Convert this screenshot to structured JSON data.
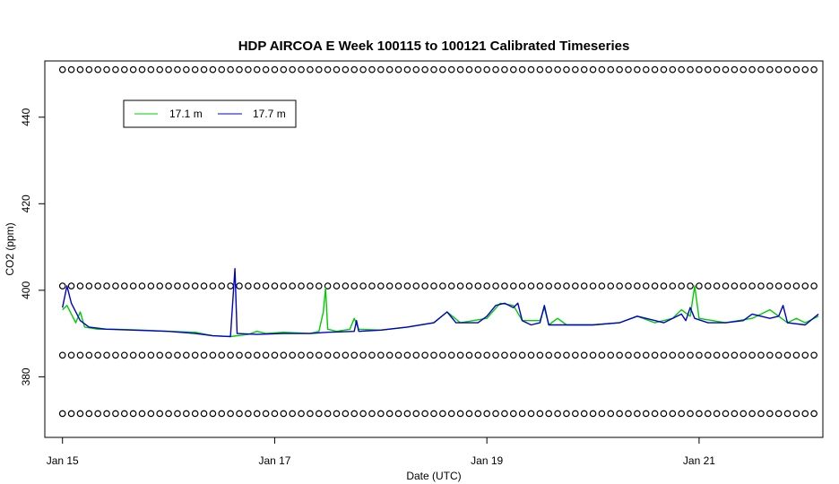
{
  "chart_data": {
    "type": "line",
    "title": "HDP AIRCOA E  Week 100115 to 100121  Calibrated Timeseries",
    "xlabel": "Date (UTC)",
    "ylabel": "CO2 (ppm)",
    "xlim": [
      "2010-01-14T20:00",
      "2010-01-22T04:00"
    ],
    "ylim": [
      366,
      453
    ],
    "x_ticks": [
      {
        "x": "2010-01-15T00:00",
        "label": "Jan 15"
      },
      {
        "x": "2010-01-17T00:00",
        "label": "Jan 17"
      },
      {
        "x": "2010-01-19T00:00",
        "label": "Jan 19"
      },
      {
        "x": "2010-01-21T00:00",
        "label": "Jan 21"
      }
    ],
    "y_ticks": [
      {
        "y": 380,
        "label": "380"
      },
      {
        "y": 400,
        "label": "400"
      },
      {
        "y": 420,
        "label": "420"
      },
      {
        "y": 440,
        "label": "440"
      }
    ],
    "grid": false,
    "legend_position": "top-left",
    "series": [
      {
        "name": "17.1 m",
        "color": "#00cc00",
        "points": [
          [
            "2010-01-15T00:00",
            395.5
          ],
          [
            "2010-01-15T01:00",
            396.5
          ],
          [
            "2010-01-15T03:00",
            392.5
          ],
          [
            "2010-01-15T04:00",
            395.0
          ],
          [
            "2010-01-15T05:00",
            391.5
          ],
          [
            "2010-01-15T08:00",
            391.0
          ],
          [
            "2010-01-15T12:00",
            391.0
          ],
          [
            "2010-01-15T18:00",
            390.8
          ],
          [
            "2010-01-16T00:00",
            390.5
          ],
          [
            "2010-01-16T06:00",
            390.3
          ],
          [
            "2010-01-16T10:00",
            389.5
          ],
          [
            "2010-01-16T14:00",
            389.3
          ],
          [
            "2010-01-16T18:00",
            389.8
          ],
          [
            "2010-01-16T20:00",
            390.5
          ],
          [
            "2010-01-16T22:00",
            390.0
          ],
          [
            "2010-01-17T02:00",
            390.3
          ],
          [
            "2010-01-17T08:00",
            390.0
          ],
          [
            "2010-01-17T10:00",
            390.5
          ],
          [
            "2010-01-17T11:00",
            395.0
          ],
          [
            "2010-01-17T11:30",
            400.5
          ],
          [
            "2010-01-17T12:00",
            391.0
          ],
          [
            "2010-01-17T14:00",
            390.5
          ],
          [
            "2010-01-17T17:00",
            391.0
          ],
          [
            "2010-01-17T18:00",
            393.5
          ],
          [
            "2010-01-17T19:00",
            391.0
          ],
          [
            "2010-01-18T00:00",
            390.8
          ],
          [
            "2010-01-18T06:00",
            391.5
          ],
          [
            "2010-01-18T12:00",
            392.5
          ],
          [
            "2010-01-18T15:00",
            395.0
          ],
          [
            "2010-01-18T18:00",
            392.5
          ],
          [
            "2010-01-19T00:00",
            393.5
          ],
          [
            "2010-01-19T03:00",
            397.0
          ],
          [
            "2010-01-19T06:00",
            396.5
          ],
          [
            "2010-01-19T08:00",
            393.0
          ],
          [
            "2010-01-19T12:00",
            393.0
          ],
          [
            "2010-01-19T13:00",
            396.0
          ],
          [
            "2010-01-19T14:00",
            392.0
          ],
          [
            "2010-01-19T16:00",
            393.5
          ],
          [
            "2010-01-19T18:00",
            392.0
          ],
          [
            "2010-01-20T00:00",
            392.0
          ],
          [
            "2010-01-20T06:00",
            392.5
          ],
          [
            "2010-01-20T10:00",
            394.0
          ],
          [
            "2010-01-20T14:00",
            392.5
          ],
          [
            "2010-01-20T18:00",
            393.5
          ],
          [
            "2010-01-20T20:00",
            395.5
          ],
          [
            "2010-01-20T22:00",
            394.0
          ],
          [
            "2010-01-20T23:00",
            401.0
          ],
          [
            "2010-01-21T00:00",
            393.5
          ],
          [
            "2010-01-21T06:00",
            392.5
          ],
          [
            "2010-01-21T12:00",
            393.5
          ],
          [
            "2010-01-21T16:00",
            395.5
          ],
          [
            "2010-01-21T18:00",
            394.0
          ],
          [
            "2010-01-21T20:00",
            392.5
          ],
          [
            "2010-01-21T22:00",
            393.5
          ],
          [
            "2010-01-22T00:00",
            392.5
          ],
          [
            "2010-01-22T03:00",
            394.0
          ]
        ]
      },
      {
        "name": "17.7 m",
        "color": "#0000cc",
        "points": [
          [
            "2010-01-15T00:00",
            396.0
          ],
          [
            "2010-01-15T01:00",
            401.0
          ],
          [
            "2010-01-15T02:00",
            397.0
          ],
          [
            "2010-01-15T04:00",
            393.0
          ],
          [
            "2010-01-15T06:00",
            391.5
          ],
          [
            "2010-01-15T10:00",
            391.0
          ],
          [
            "2010-01-15T16:00",
            390.8
          ],
          [
            "2010-01-16T00:00",
            390.5
          ],
          [
            "2010-01-16T06:00",
            390.0
          ],
          [
            "2010-01-16T10:00",
            389.5
          ],
          [
            "2010-01-16T14:00",
            389.3
          ],
          [
            "2010-01-16T15:00",
            405.0
          ],
          [
            "2010-01-16T15:30",
            390.0
          ],
          [
            "2010-01-16T20:00",
            389.8
          ],
          [
            "2010-01-17T02:00",
            390.0
          ],
          [
            "2010-01-17T08:00",
            390.0
          ],
          [
            "2010-01-17T12:00",
            390.3
          ],
          [
            "2010-01-17T18:00",
            390.5
          ],
          [
            "2010-01-17T18:30",
            393.0
          ],
          [
            "2010-01-17T19:00",
            390.5
          ],
          [
            "2010-01-18T00:00",
            390.8
          ],
          [
            "2010-01-18T06:00",
            391.5
          ],
          [
            "2010-01-18T12:00",
            392.5
          ],
          [
            "2010-01-18T15:00",
            395.0
          ],
          [
            "2010-01-18T17:00",
            392.5
          ],
          [
            "2010-01-18T22:00",
            392.5
          ],
          [
            "2010-01-19T00:00",
            394.0
          ],
          [
            "2010-01-19T02:00",
            396.5
          ],
          [
            "2010-01-19T04:00",
            397.0
          ],
          [
            "2010-01-19T06:00",
            396.0
          ],
          [
            "2010-01-19T07:00",
            397.0
          ],
          [
            "2010-01-19T08:00",
            393.0
          ],
          [
            "2010-01-19T10:00",
            392.0
          ],
          [
            "2010-01-19T12:00",
            392.5
          ],
          [
            "2010-01-19T13:00",
            396.5
          ],
          [
            "2010-01-19T14:00",
            392.0
          ],
          [
            "2010-01-19T18:00",
            392.0
          ],
          [
            "2010-01-20T00:00",
            392.0
          ],
          [
            "2010-01-20T06:00",
            392.5
          ],
          [
            "2010-01-20T10:00",
            394.0
          ],
          [
            "2010-01-20T12:00",
            393.5
          ],
          [
            "2010-01-20T16:00",
            392.5
          ],
          [
            "2010-01-20T20:00",
            394.5
          ],
          [
            "2010-01-20T21:00",
            393.0
          ],
          [
            "2010-01-20T22:00",
            396.0
          ],
          [
            "2010-01-20T23:00",
            393.5
          ],
          [
            "2010-01-21T02:00",
            392.5
          ],
          [
            "2010-01-21T06:00",
            392.5
          ],
          [
            "2010-01-21T10:00",
            393.0
          ],
          [
            "2010-01-21T12:00",
            394.5
          ],
          [
            "2010-01-21T16:00",
            393.5
          ],
          [
            "2010-01-21T18:00",
            394.0
          ],
          [
            "2010-01-21T19:00",
            396.5
          ],
          [
            "2010-01-21T20:00",
            392.5
          ],
          [
            "2010-01-22T00:00",
            392.0
          ],
          [
            "2010-01-22T03:00",
            394.5
          ]
        ]
      }
    ],
    "marker_rows": [
      {
        "y": 371.5,
        "symbol": "o"
      },
      {
        "y": 385.0,
        "symbol": "o"
      },
      {
        "y": 401.0,
        "symbol": "o"
      },
      {
        "y": 451.0,
        "symbol": "o"
      }
    ],
    "marker_interval_hours": 2
  }
}
